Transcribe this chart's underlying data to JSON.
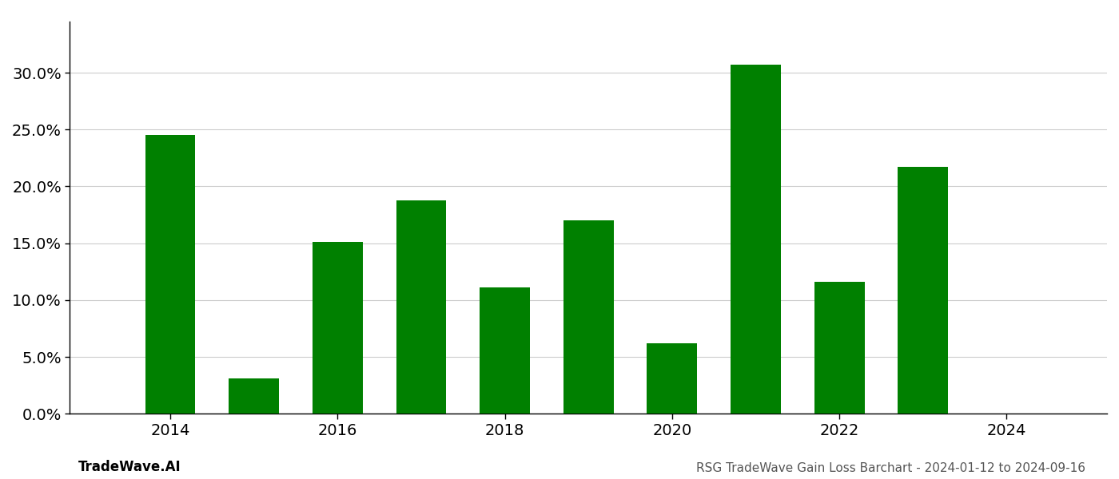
{
  "years": [
    2014,
    2015,
    2016,
    2017,
    2018,
    2019,
    2020,
    2021,
    2022,
    2023,
    2024
  ],
  "values": [
    0.245,
    0.031,
    0.151,
    0.188,
    0.111,
    0.17,
    0.062,
    0.307,
    0.116,
    0.217,
    null
  ],
  "bar_color": "#008000",
  "background_color": "#ffffff",
  "grid_color": "#cccccc",
  "spine_color": "#000000",
  "tick_label_color": "#888888",
  "footer_color": "#555555",
  "title_text": "RSG TradeWave Gain Loss Barchart - 2024-01-12 to 2024-09-16",
  "watermark_text": "TradeWave.AI",
  "ylim": [
    0,
    0.345
  ],
  "yticks": [
    0.0,
    0.05,
    0.1,
    0.15,
    0.2,
    0.25,
    0.3
  ],
  "xticks": [
    2014,
    2016,
    2018,
    2020,
    2022,
    2024
  ],
  "title_fontsize": 11,
  "watermark_fontsize": 12,
  "tick_fontsize": 14,
  "bar_width": 0.6,
  "xlim_left": 2012.8,
  "xlim_right": 2025.2
}
